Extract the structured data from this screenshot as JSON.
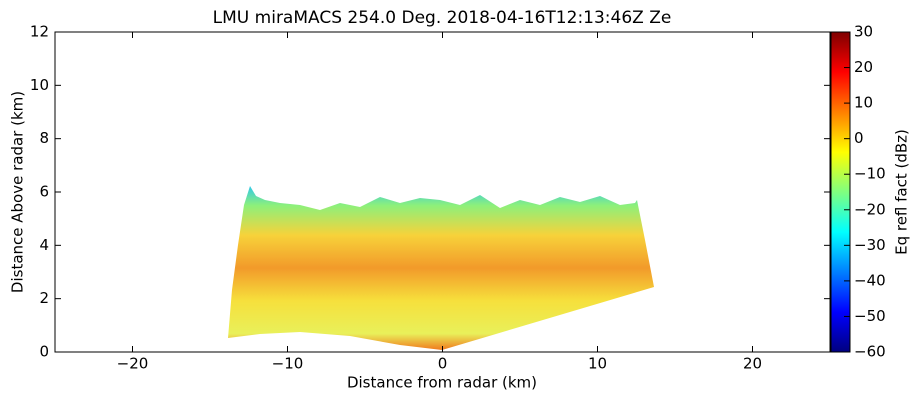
{
  "chart_data": {
    "type": "heatmap",
    "title": "LMU miraMACS 254.0 Deg. 2018-04-16T12:13:46Z  Ze",
    "x_label": "Distance from radar (km)",
    "y_label": "Distance Above radar  (km)",
    "xlim": [
      -25,
      25
    ],
    "xticks": [
      {
        "value": -20,
        "label": "−20"
      },
      {
        "value": -10,
        "label": "−10"
      },
      0,
      10,
      20
    ],
    "ylim": [
      0,
      12
    ],
    "yticks": [
      0,
      2,
      4,
      6,
      8,
      10,
      12
    ],
    "colorbar": {
      "label": "Eq refl fact (dBz)",
      "colormap": "jet",
      "lim": [
        -60,
        30
      ],
      "ticks": [
        {
          "value": -60,
          "label": "−60"
        },
        {
          "value": -50,
          "label": "−50"
        },
        {
          "value": -40,
          "label": "−40"
        },
        {
          "value": -30,
          "label": "−30"
        },
        {
          "value": -20,
          "label": "−20"
        },
        {
          "value": -10,
          "label": "−10"
        },
        0,
        10,
        20,
        30
      ]
    },
    "grid": false
  }
}
